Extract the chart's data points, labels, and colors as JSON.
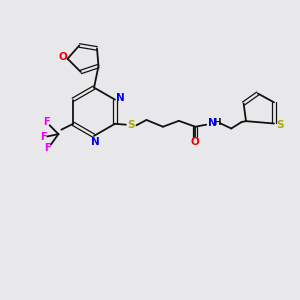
{
  "background_color": "#e8e8ea",
  "bond_color": "#111111",
  "fig_size": [
    3.0,
    3.0
  ],
  "dpi": 100,
  "atom_colors": {
    "N": "#0000ee",
    "O": "#ee0000",
    "S": "#aaaa00",
    "F": "#ee00ee",
    "C": "#111111"
  },
  "lw": 1.3,
  "lw_thin": 0.9,
  "fs": 7.0
}
